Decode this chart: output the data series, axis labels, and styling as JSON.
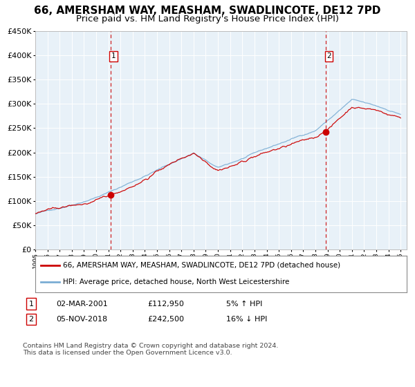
{
  "title": "66, AMERSHAM WAY, MEASHAM, SWADLINCOTE, DE12 7PD",
  "subtitle": "Price paid vs. HM Land Registry's House Price Index (HPI)",
  "legend_line1": "66, AMERSHAM WAY, MEASHAM, SWADLINCOTE, DE12 7PD (detached house)",
  "legend_line2": "HPI: Average price, detached house, North West Leicestershire",
  "annotation1_date": "02-MAR-2001",
  "annotation1_price": "£112,950",
  "annotation1_pct": "5% ↑ HPI",
  "annotation2_date": "05-NOV-2018",
  "annotation2_price": "£242,500",
  "annotation2_pct": "16% ↓ HPI",
  "footer": "Contains HM Land Registry data © Crown copyright and database right 2024.\nThis data is licensed under the Open Government Licence v3.0.",
  "sale1_year": 2001.17,
  "sale1_price": 112950,
  "sale2_year": 2018.84,
  "sale2_price": 242500,
  "ylim_min": 0,
  "ylim_max": 450000,
  "plot_bg": "#e8f1f8",
  "red_line_color": "#cc0000",
  "blue_line_color": "#7aadd4",
  "dashed_line_color": "#cc0000",
  "grid_color": "#ffffff",
  "annotation_box_color": "#cc0000",
  "title_fontsize": 11,
  "subtitle_fontsize": 9.5
}
